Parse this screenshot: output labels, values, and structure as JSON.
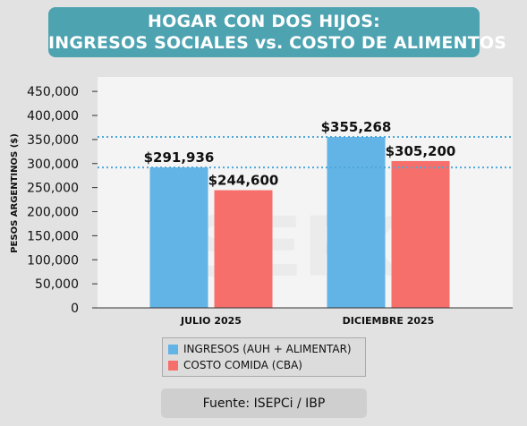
{
  "title": {
    "line1": "HOGAR CON DOS HIJOS:",
    "line2": "INGRESOS SOCIALES vs. COSTO DE ALIMENTOS"
  },
  "watermark": "ISEPCi",
  "source": "Fuente: ISEPCi / IBP",
  "colors": {
    "background": "#e2e2e2",
    "plot_background": "#f4f4f4",
    "title_bar": "#4ea3b1",
    "ingresos": "#62b3e6",
    "costo": "#f76f6b",
    "reference_line": "#4ea8d8"
  },
  "chart_data": {
    "type": "bar",
    "title": "HOGAR CON DOS HIJOS: INGRESOS SOCIALES vs. COSTO DE ALIMENTOS",
    "xlabel": "",
    "ylabel": "PESOS ARGENTINOS ($)",
    "categories": [
      "JULIO 2025",
      "DICIEMBRE 2025"
    ],
    "series": [
      {
        "name": "INGRESOS (AUH + ALIMENTAR)",
        "values": [
          291936,
          355268
        ],
        "labels": [
          "$291,936",
          "$355,268"
        ],
        "color": "#62b3e6"
      },
      {
        "name": "COSTO COMIDA (CBA)",
        "values": [
          244600,
          305200
        ],
        "labels": [
          "$244,600",
          "$305,200"
        ],
        "color": "#f76f6b"
      }
    ],
    "ylim": [
      0,
      480000
    ],
    "yticks": [
      0,
      50000,
      100000,
      150000,
      200000,
      250000,
      300000,
      350000,
      400000,
      450000
    ],
    "ytick_labels": [
      "0",
      "50,000",
      "100,000",
      "150,000",
      "200,000",
      "250,000",
      "300,000",
      "350,000",
      "400,000",
      "450,000"
    ],
    "reference_lines": [
      {
        "y": 291936,
        "style": "dotted"
      },
      {
        "y": 355268,
        "style": "dotted"
      }
    ],
    "grid": false,
    "legend_position": "bottom-center"
  }
}
